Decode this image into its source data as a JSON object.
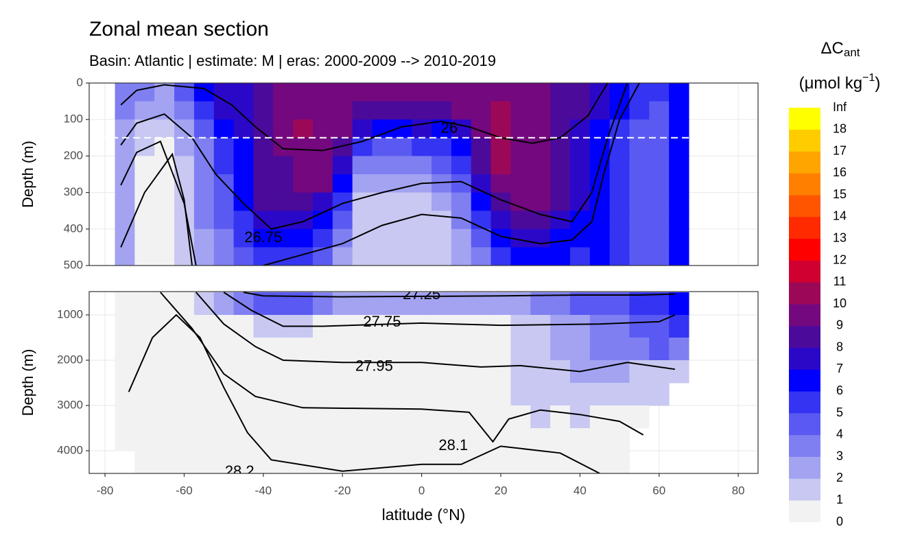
{
  "chart_data": [
    {
      "type": "contour",
      "title": "Zonal mean section",
      "subtitle": "Basin: Atlantic | estimate: M  | eras: 2000-2009 --> 2010-2019",
      "y_label": "Depth (m)",
      "xlim": [
        -84,
        85
      ],
      "ylim": [
        0,
        500
      ],
      "yticks": [
        0,
        100,
        200,
        300,
        400,
        500
      ],
      "y_reversed": true,
      "grid": true,
      "hline": 150,
      "x": [
        -75,
        -70,
        -65,
        -60,
        -55,
        -50,
        -45,
        -40,
        -35,
        -30,
        -25,
        -20,
        -15,
        -10,
        -5,
        0,
        5,
        10,
        15,
        20,
        25,
        30,
        35,
        40,
        45,
        50,
        55,
        60,
        65
      ],
      "y": [
        25,
        75,
        125,
        175,
        225,
        275,
        325,
        375,
        425,
        475
      ],
      "z": [
        [
          3.5,
          3.5,
          2.5,
          4.5,
          6.5,
          7.5,
          7.5,
          8.5,
          9.5,
          9.5,
          9.5,
          9.5,
          9.5,
          9.5,
          9.5,
          9.5,
          9.5,
          9.5,
          9.5,
          9.5,
          9.5,
          9.5,
          8.5,
          8.5,
          7.5,
          6.5,
          5.5,
          5.5,
          6.5
        ],
        [
          3.5,
          2.5,
          2.5,
          3.5,
          5.5,
          7.5,
          7.5,
          8.5,
          9.5,
          9.5,
          9.5,
          9.5,
          8.5,
          8.5,
          8.5,
          8.5,
          8.5,
          9.5,
          9.5,
          10.5,
          9.5,
          9.5,
          8.5,
          8.5,
          7.5,
          6.5,
          5.5,
          4.5,
          6.5
        ],
        [
          2.5,
          1.5,
          1.5,
          2.5,
          4.5,
          6.5,
          7.5,
          8.5,
          9.5,
          10.5,
          9.5,
          9.5,
          7.5,
          6.5,
          6.5,
          7.5,
          6.5,
          7.5,
          9.5,
          10.5,
          9.5,
          9.5,
          8.5,
          7.5,
          6.5,
          5.5,
          4.5,
          4.5,
          6.5
        ],
        [
          2.5,
          1.5,
          0.5,
          2.5,
          3.5,
          5.5,
          6.5,
          8.5,
          9.5,
          9.5,
          9.5,
          8.5,
          5.5,
          4.5,
          4.5,
          5.5,
          5.5,
          6.5,
          8.5,
          10.5,
          9.5,
          9.5,
          8.5,
          7.5,
          6.5,
          5.5,
          4.5,
          4.5,
          6.5
        ],
        [
          2.5,
          0.5,
          0.5,
          1.5,
          3.5,
          5.5,
          6.5,
          8.5,
          8.5,
          9.5,
          9.5,
          7.5,
          3.5,
          3.5,
          3.5,
          3.5,
          4.5,
          5.5,
          8.5,
          10.5,
          9.5,
          9.5,
          8.5,
          7.5,
          6.5,
          5.5,
          4.5,
          4.5,
          6.5
        ],
        [
          2.5,
          0.5,
          0.5,
          1.5,
          3.5,
          4.5,
          6.5,
          8.5,
          8.5,
          9.5,
          9.5,
          6.5,
          2.5,
          2.5,
          2.5,
          2.5,
          3.5,
          4.5,
          7.5,
          9.5,
          9.5,
          9.5,
          8.5,
          7.5,
          6.5,
          5.5,
          4.5,
          4.5,
          6.5
        ],
        [
          2.5,
          0.5,
          0.5,
          1.5,
          3.5,
          4.5,
          6.5,
          8.5,
          8.5,
          8.5,
          7.5,
          5.5,
          1.5,
          1.5,
          1.5,
          1.5,
          2.5,
          3.5,
          6.5,
          8.5,
          9.5,
          9.5,
          8.5,
          7.5,
          6.5,
          5.5,
          4.5,
          4.5,
          6.5
        ],
        [
          2.5,
          0.5,
          0.5,
          1.5,
          3.5,
          4.5,
          5.5,
          7.5,
          7.5,
          7.5,
          6.5,
          4.5,
          1.5,
          1.5,
          1.5,
          1.5,
          1.5,
          3.5,
          5.5,
          7.5,
          8.5,
          8.5,
          7.5,
          6.5,
          6.5,
          5.5,
          4.5,
          4.5,
          6.5
        ],
        [
          2.5,
          0.5,
          0.5,
          1.5,
          2.5,
          3.5,
          5.5,
          6.5,
          6.5,
          6.5,
          5.5,
          3.5,
          1.5,
          1.5,
          1.5,
          1.5,
          1.5,
          2.5,
          4.5,
          6.5,
          7.5,
          7.5,
          6.5,
          6.5,
          6.5,
          5.5,
          4.5,
          4.5,
          6.5
        ],
        [
          2.5,
          0.5,
          0.5,
          1.5,
          2.5,
          3.5,
          4.5,
          5.5,
          5.5,
          5.5,
          4.5,
          2.5,
          1.5,
          1.5,
          1.5,
          1.5,
          1.5,
          2.5,
          3.5,
          5.5,
          6.5,
          6.5,
          6.5,
          5.5,
          6.5,
          5.5,
          4.5,
          4.5,
          6.5
        ]
      ],
      "contours": [
        {
          "x": [
            -76,
            -72,
            -65,
            -55,
            -48,
            -42,
            -35,
            -25,
            -15,
            -5,
            5,
            12,
            20,
            28,
            35,
            42,
            47
          ],
          "y": [
            60,
            20,
            5,
            15,
            60,
            120,
            180,
            185,
            160,
            120,
            105,
            120,
            150,
            165,
            150,
            90,
            0
          ]
        },
        {
          "x": [
            -76,
            -72,
            -65,
            -58,
            -52,
            -45,
            -38,
            -30,
            -20,
            -10,
            0,
            10,
            20,
            30,
            38,
            43,
            47,
            52
          ],
          "y": [
            170,
            110,
            85,
            150,
            250,
            330,
            400,
            380,
            330,
            300,
            275,
            270,
            320,
            360,
            380,
            300,
            150,
            0
          ]
        },
        {
          "x": [
            -76,
            -72,
            -66,
            -60,
            -57
          ],
          "y": [
            280,
            190,
            160,
            330,
            500
          ]
        },
        {
          "x": [
            -76,
            -70,
            -63,
            -60,
            -58
          ],
          "y": [
            450,
            300,
            195,
            320,
            500
          ]
        },
        {
          "x": [
            -40,
            -30,
            -20,
            -10,
            0,
            10,
            20,
            30,
            38,
            43,
            46,
            50,
            55
          ],
          "y": [
            500,
            470,
            440,
            390,
            360,
            370,
            420,
            440,
            430,
            380,
            250,
            100,
            0
          ]
        }
      ],
      "annotations": [
        {
          "text": "26",
          "x": 7,
          "y": 125
        },
        {
          "text": "26.75",
          "x": -40,
          "y": 425
        }
      ],
      "legend": {
        "title": "ΔC",
        "title_sub": "ant",
        "unit": "(μmol kg",
        "unit_sup": "−1",
        "unit_end": ")",
        "breaks": [
          0,
          1,
          2,
          3,
          4,
          5,
          6,
          7,
          8,
          9,
          10,
          11,
          12,
          13,
          14,
          15,
          16,
          17,
          18,
          "Inf"
        ],
        "colors": [
          "#f2f2f2",
          "#c8c8f2",
          "#a3a3f2",
          "#7f7ff2",
          "#5a5af2",
          "#3434f2",
          "#0000ff",
          "#2b08c8",
          "#4b0a9a",
          "#74087e",
          "#9c0858",
          "#d00030",
          "#ff0000",
          "#ff2a00",
          "#ff5500",
          "#ff8000",
          "#ffa500",
          "#ffcc00",
          "#ffff00"
        ]
      }
    },
    {
      "type": "contour",
      "y_label": "Depth (m)",
      "x_label": "latitude (°N)",
      "xlim": [
        -84,
        85
      ],
      "xticks": [
        -80,
        -60,
        -40,
        -20,
        0,
        20,
        40,
        60,
        80
      ],
      "ylim": [
        485,
        4500
      ],
      "yticks": [
        1000,
        2000,
        3000,
        4000
      ],
      "y_reversed": true,
      "grid": true,
      "x": [
        -75,
        -70,
        -65,
        -60,
        -55,
        -50,
        -45,
        -40,
        -35,
        -30,
        -25,
        -20,
        -15,
        -10,
        -5,
        0,
        5,
        10,
        15,
        20,
        25,
        30,
        35,
        40,
        45,
        50,
        55,
        60,
        65
      ],
      "y": [
        750,
        1250,
        1750,
        2250,
        2750,
        3250,
        3750,
        4250
      ],
      "z": [
        [
          0.5,
          0.5,
          0.5,
          0.5,
          1.5,
          2.5,
          3.5,
          4.5,
          4.5,
          4.5,
          3.5,
          2.5,
          2.5,
          2.5,
          2.5,
          2.5,
          2.5,
          2.5,
          2.5,
          2.5,
          2.5,
          3.5,
          3.5,
          4.5,
          4.5,
          4.5,
          5.5,
          5.5,
          6.5
        ],
        [
          0.5,
          0.5,
          0.5,
          0.5,
          0.5,
          0.5,
          0.5,
          1.5,
          1.5,
          1.5,
          0.5,
          0.5,
          0.5,
          0.5,
          0.5,
          0.5,
          0.5,
          0.5,
          0.5,
          0.5,
          1.5,
          1.5,
          2.5,
          2.5,
          3.5,
          3.5,
          4.5,
          4.5,
          5.5
        ],
        [
          0.5,
          0.5,
          0.5,
          0.5,
          0.5,
          0.5,
          0.5,
          0.5,
          0.5,
          0.5,
          0.5,
          0.5,
          0.5,
          0.5,
          0.5,
          0.5,
          0.5,
          0.5,
          0.5,
          0.5,
          1.5,
          1.5,
          2.5,
          2.5,
          3.5,
          3.5,
          3.5,
          4.5,
          3.5
        ],
        [
          0.5,
          0.5,
          0.5,
          0.5,
          0.5,
          0.5,
          0.5,
          0.5,
          0.5,
          0.5,
          0.5,
          0.5,
          0.5,
          0.5,
          0.5,
          0.5,
          0.5,
          0.5,
          0.5,
          0.5,
          1.5,
          1.5,
          1.5,
          2.5,
          2.5,
          2.5,
          1.5,
          1.5,
          1.5
        ],
        [
          0.5,
          0.5,
          0.5,
          0.5,
          0.5,
          0.5,
          0.5,
          0.5,
          0.5,
          0.5,
          0.5,
          0.5,
          0.5,
          0.5,
          0.5,
          0.5,
          0.5,
          0.5,
          0.5,
          0.5,
          1.5,
          1.5,
          1.5,
          1.5,
          1.5,
          1.5,
          1.5,
          1.5,
          null
        ],
        [
          0.5,
          0.5,
          0.5,
          0.5,
          0.5,
          0.5,
          0.5,
          0.5,
          0.5,
          0.5,
          0.5,
          0.5,
          0.5,
          0.5,
          0.5,
          0.5,
          0.5,
          0.5,
          0.5,
          0.5,
          0.5,
          1.5,
          0.5,
          1.5,
          0.5,
          0.5,
          0.5,
          null,
          null
        ],
        [
          0.5,
          0.5,
          0.5,
          0.5,
          0.5,
          0.5,
          0.5,
          0.5,
          0.5,
          0.5,
          0.5,
          0.5,
          0.5,
          0.5,
          0.5,
          0.5,
          0.5,
          0.5,
          0.5,
          0.5,
          0.5,
          0.5,
          0.5,
          0.5,
          0.5,
          0.5,
          null,
          null,
          null
        ],
        [
          null,
          0.5,
          0.5,
          0.5,
          0.5,
          0.5,
          0.5,
          0.5,
          0.5,
          0.5,
          0.5,
          0.5,
          0.5,
          0.5,
          0.5,
          0.5,
          0.5,
          0.5,
          0.5,
          0.5,
          0.5,
          0.5,
          0.5,
          0.5,
          0.5,
          0.5,
          null,
          null,
          null
        ]
      ],
      "contours": [
        {
          "x": [
            -45,
            -40,
            -20,
            0,
            20,
            40,
            55,
            64
          ],
          "y": [
            500,
            580,
            600,
            590,
            580,
            560,
            560,
            540
          ]
        },
        {
          "x": [
            -50,
            -43,
            -35,
            -25,
            0,
            20,
            45,
            60,
            64
          ],
          "y": [
            500,
            900,
            1250,
            1250,
            1180,
            1230,
            1200,
            1150,
            1000
          ]
        },
        {
          "x": [
            -57,
            -50,
            -42,
            -35,
            -20,
            0,
            15,
            25,
            40,
            52,
            60,
            64
          ],
          "y": [
            500,
            1200,
            1700,
            2000,
            2050,
            2050,
            2150,
            2120,
            2250,
            2050,
            2150,
            2200
          ]
        },
        {
          "x": [
            -66,
            -58,
            -50,
            -42,
            -30,
            0,
            12,
            18,
            22,
            30,
            40,
            50,
            56
          ],
          "y": [
            500,
            1300,
            2300,
            2800,
            3050,
            3080,
            3150,
            3800,
            3300,
            3100,
            3200,
            3350,
            3650
          ]
        },
        {
          "x": [
            -74,
            -68,
            -62,
            -56,
            -50,
            -44,
            -38,
            -20,
            0,
            10,
            20,
            35,
            45
          ],
          "y": [
            2700,
            1500,
            1000,
            1500,
            2600,
            3600,
            4200,
            4450,
            4300,
            4300,
            3900,
            4050,
            4500
          ]
        }
      ],
      "annotations": [
        {
          "text": "27.25",
          "x": 0,
          "y": 560
        },
        {
          "text": "27.75",
          "x": -10,
          "y": 1170
        },
        {
          "text": "27.95",
          "x": -12,
          "y": 2150
        },
        {
          "text": "28.1",
          "x": 8,
          "y": 3900
        },
        {
          "text": "28.2",
          "x": -46,
          "y": 4470
        }
      ]
    }
  ]
}
